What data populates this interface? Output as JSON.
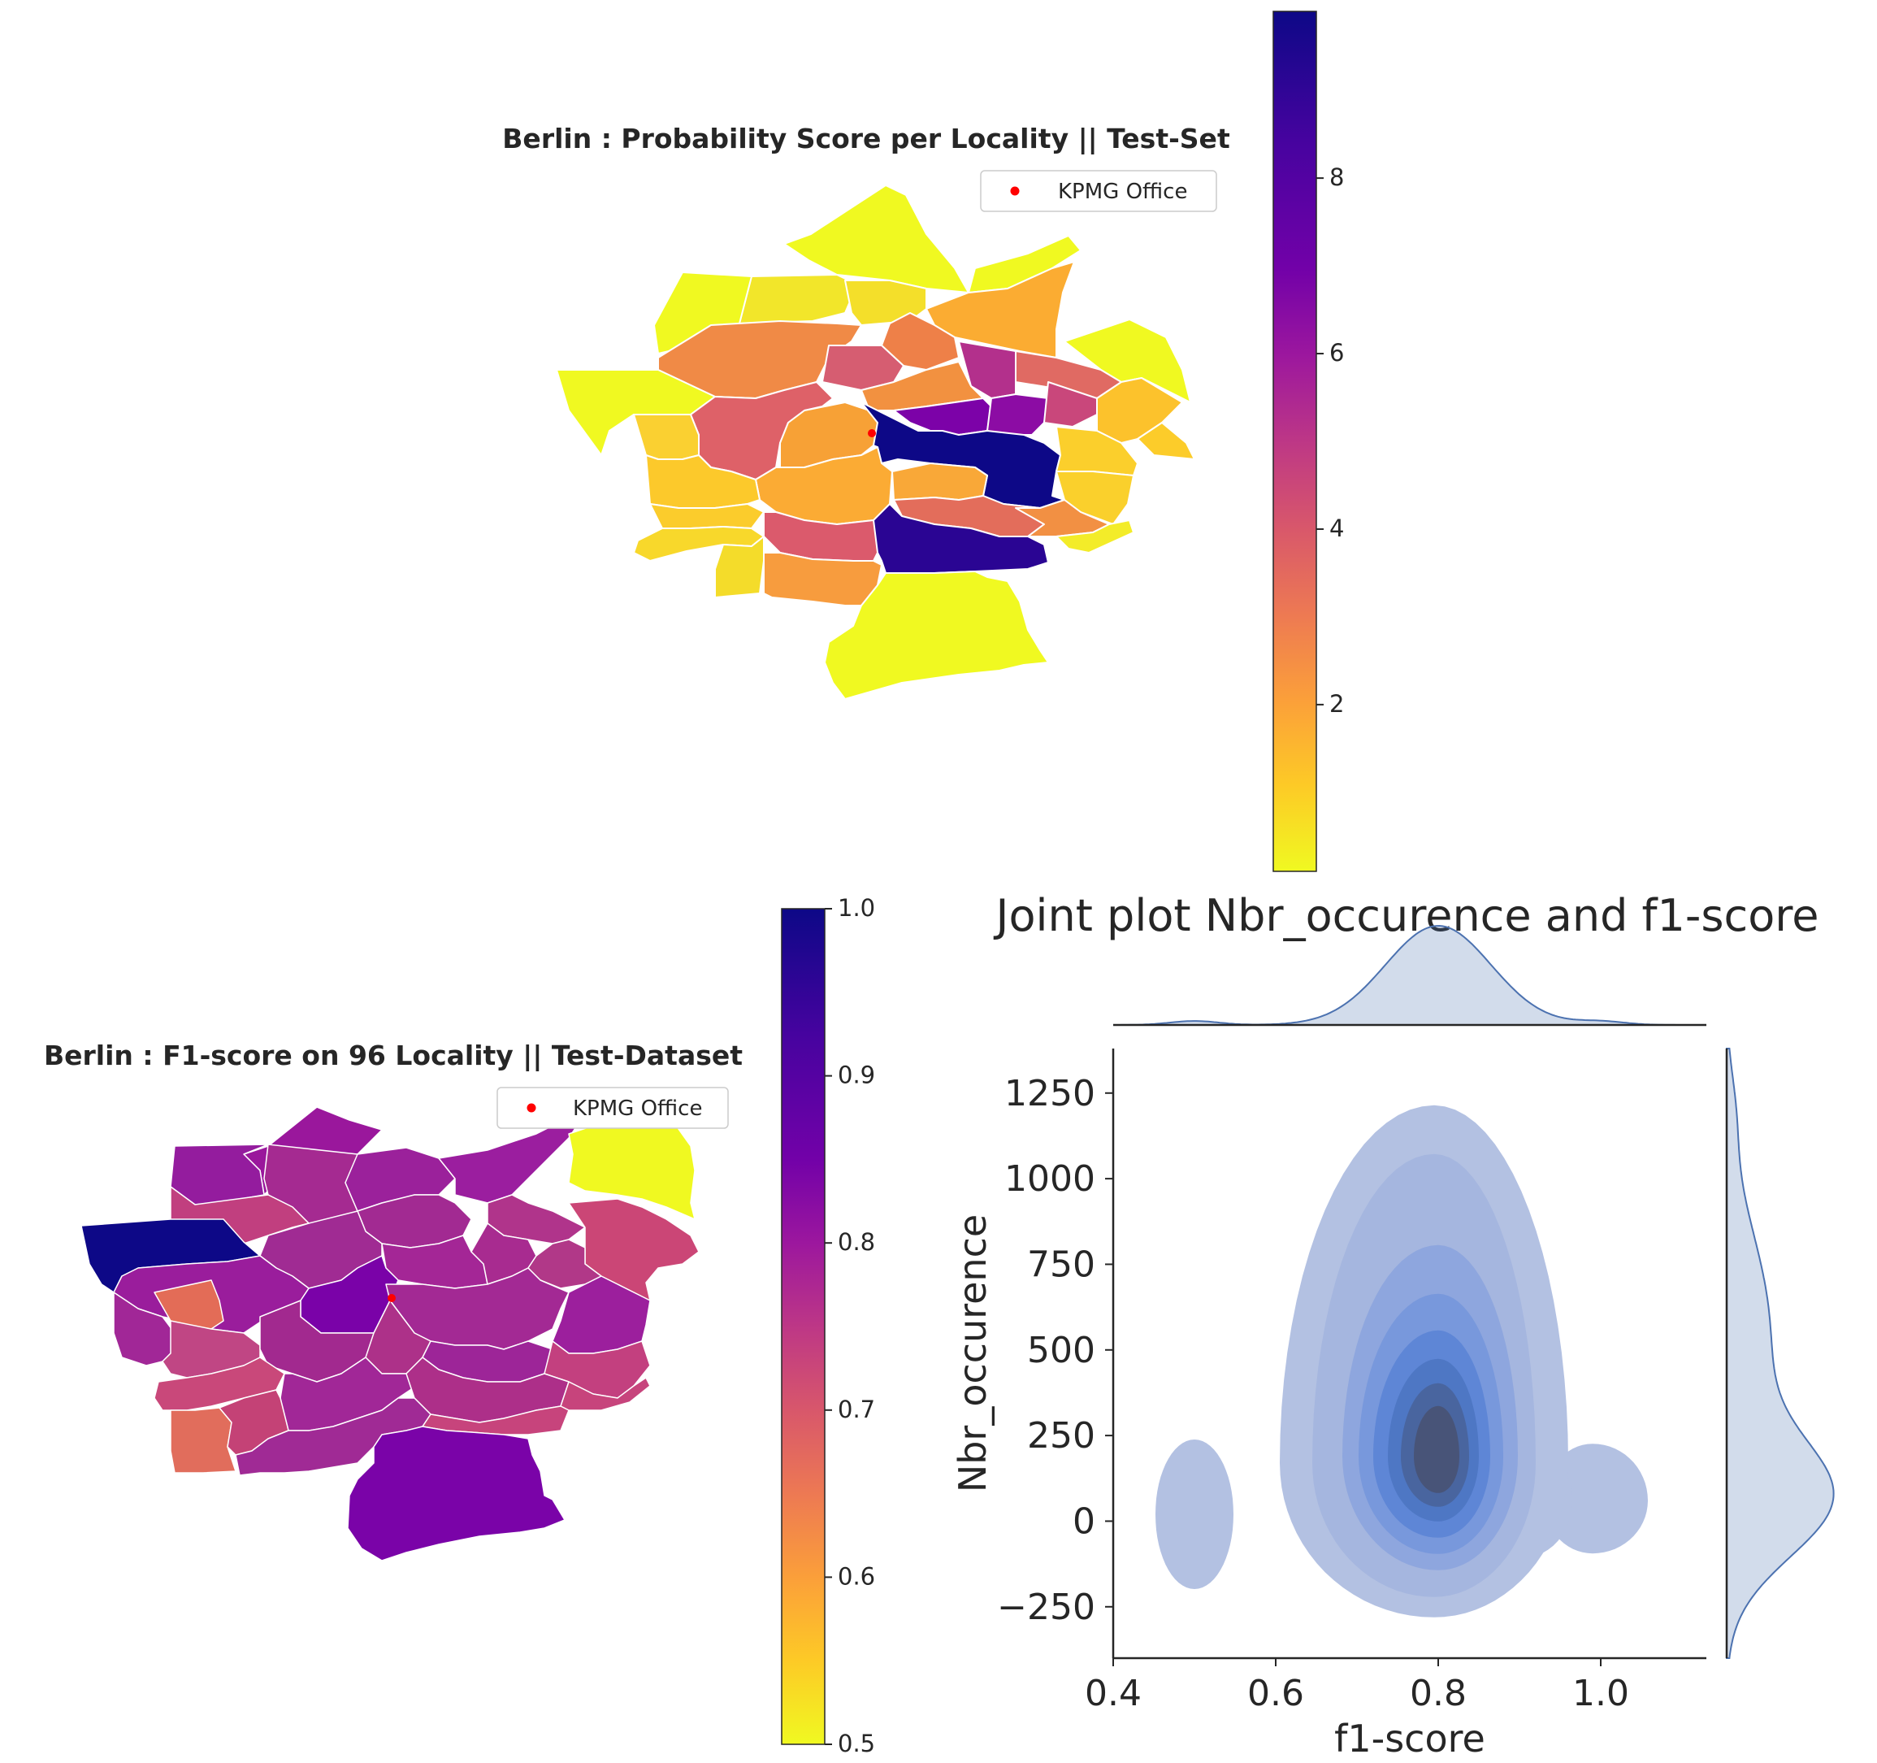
{
  "chart_data": [
    {
      "type": "choropleth",
      "title": "Berlin : Probability Score per Locality || Test-Set",
      "legend": {
        "entries": [
          "KPMG Office"
        ],
        "marker_color": "#ff0000",
        "placement": "top-right"
      },
      "colorbar": {
        "cmap": "plasma_r",
        "range": [
          0.1,
          9.9
        ],
        "ticks": [
          "2",
          "4",
          "6",
          "8"
        ],
        "tick_values": [
          2,
          4,
          6,
          8
        ]
      },
      "axes_visible": false
    },
    {
      "type": "choropleth",
      "title": "Berlin : F1-score on 96 Locality || Test-Dataset",
      "legend": {
        "entries": [
          "KPMG Office"
        ],
        "marker_color": "#ff0000",
        "placement": "top-right"
      },
      "colorbar": {
        "cmap": "plasma_r",
        "range": [
          0.5,
          1.0
        ],
        "ticks": [
          "0.5",
          "0.6",
          "0.7",
          "0.8",
          "0.9",
          "1.0"
        ],
        "tick_values": [
          0.5,
          0.6,
          0.7,
          0.8,
          0.9,
          1.0
        ]
      },
      "axes_visible": false
    },
    {
      "type": "kde-joint",
      "title": "Joint plot Nbr_occurence and f1-score",
      "xlabel": "f1-score",
      "ylabel": "Nbr_occurence",
      "xlim": [
        0.4,
        1.13
      ],
      "ylim": [
        -400,
        1380
      ],
      "xticks": [
        "0.4",
        "0.6",
        "0.8",
        "1.0"
      ],
      "xtick_values": [
        0.4,
        0.6,
        0.8,
        1.0
      ],
      "yticks": [
        "−250",
        "0",
        "250",
        "500",
        "750",
        "1000",
        "1250"
      ],
      "ytick_values": [
        -250,
        0,
        250,
        500,
        750,
        1000,
        1250
      ],
      "color": "#4c72b0",
      "contour_levels": 9,
      "density_peak": {
        "x": 0.8,
        "y": 170
      },
      "secondary_modes": [
        {
          "x": 0.5,
          "y": 20
        },
        {
          "x": 1.0,
          "y": 60
        }
      ]
    }
  ]
}
